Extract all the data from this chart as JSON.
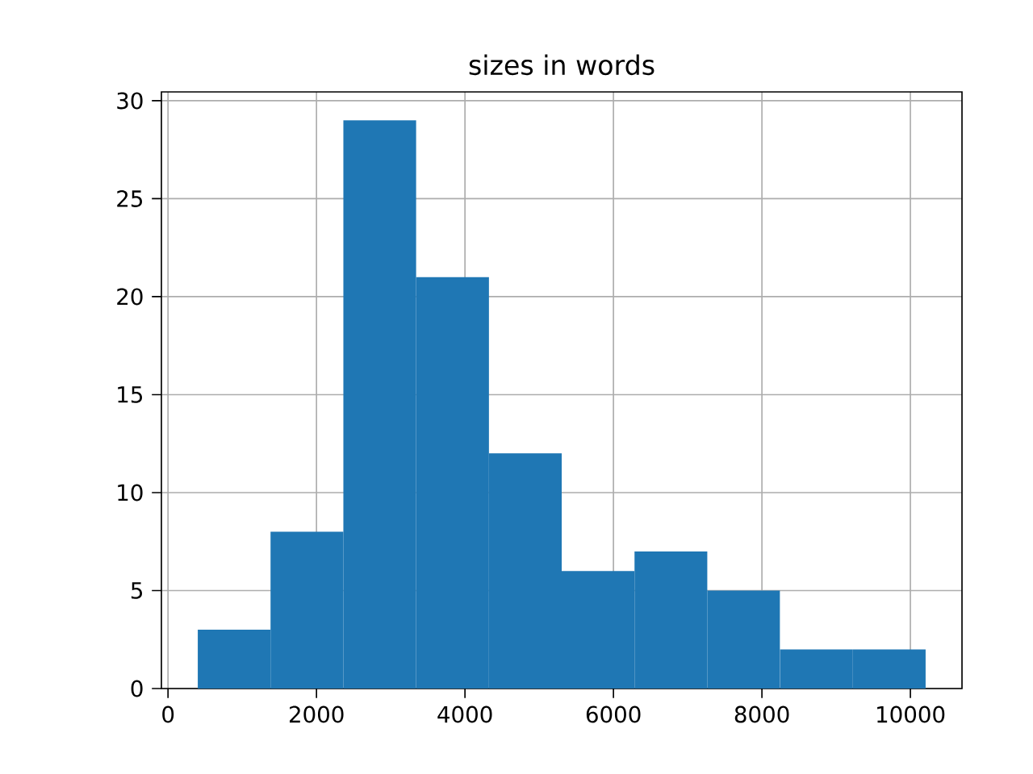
{
  "chart_data": {
    "type": "histogram",
    "title": "sizes in words",
    "bins": [
      401,
      1381,
      2362,
      3342,
      4323,
      5303,
      6283,
      7264,
      8244,
      9225,
      10205
    ],
    "values": [
      3,
      8,
      29,
      21,
      12,
      6,
      7,
      5,
      2,
      2
    ],
    "color": "#1f77b4",
    "xlim": [
      -89,
      10695
    ],
    "ylim": [
      0,
      30.45
    ],
    "xticks": [
      0,
      2000,
      4000,
      6000,
      8000,
      10000
    ],
    "yticks": [
      0,
      5,
      10,
      15,
      20,
      25,
      30
    ],
    "grid": true
  }
}
